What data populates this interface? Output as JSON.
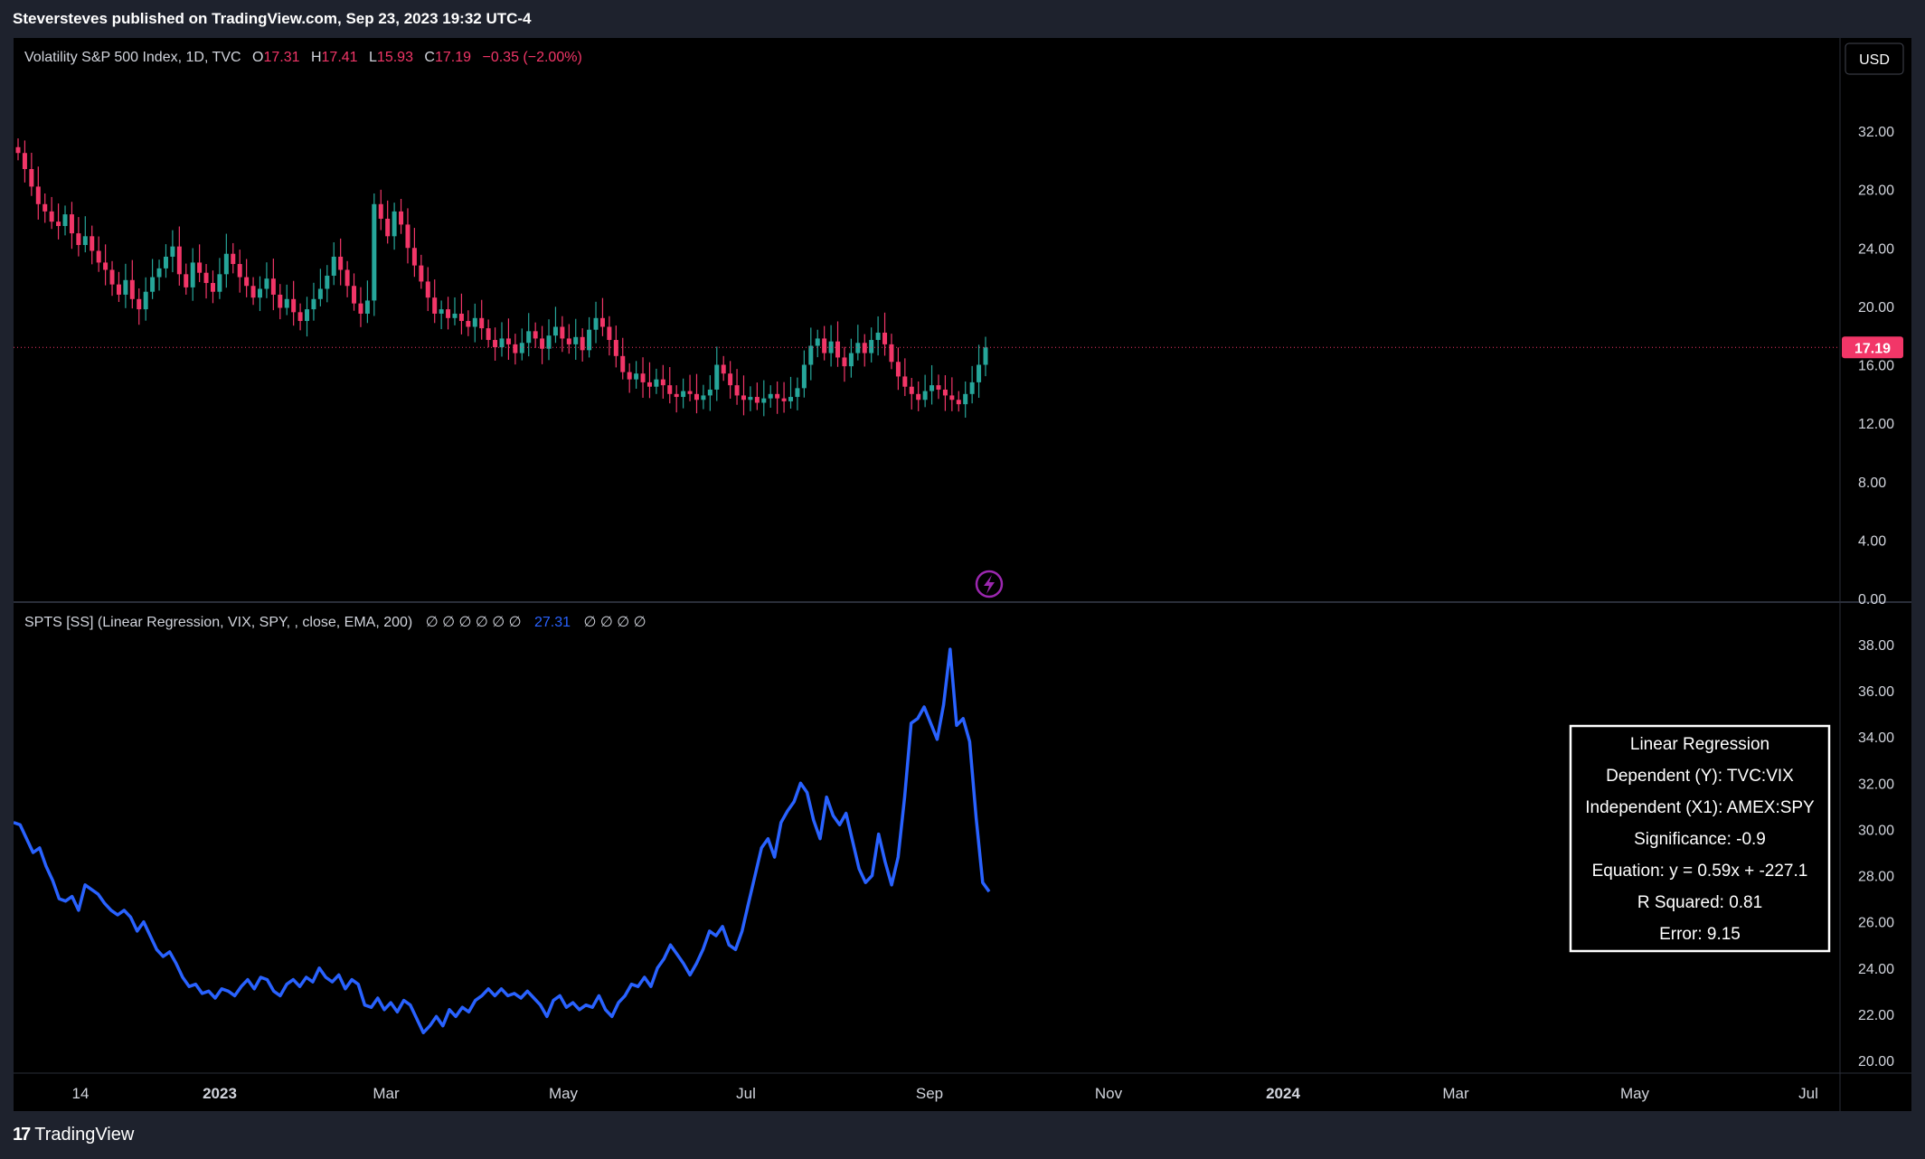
{
  "header": {
    "publisher": "Steversteves published on TradingView.com, Sep 23, 2023 19:32 UTC-4"
  },
  "footer": {
    "brand": "TradingView",
    "logo_icon": "tradingview-logo-icon"
  },
  "currency_button": "USD",
  "colors": {
    "up": "#26a69a",
    "down": "#f23668",
    "line": "#2962ff",
    "background": "#000000",
    "text": "#d1d4dc",
    "price_tag": "#f23668"
  },
  "time_axis": [
    "14",
    "2023",
    "Mar",
    "May",
    "Jul",
    "Sep",
    "Nov",
    "2024",
    "Mar",
    "May",
    "Jul"
  ],
  "chart_data": [
    {
      "type": "candlestick",
      "legend": {
        "symbol": "Volatility S&P 500 Index, 1D, TVC",
        "o_label": "O",
        "o": "17.31",
        "h_label": "H",
        "h": "17.41",
        "l_label": "L",
        "l": "15.93",
        "c_label": "C",
        "c": "17.19",
        "change": "−0.35 (−2.00%)"
      },
      "yticks": [
        "32.00",
        "28.00",
        "24.00",
        "20.00",
        "16.00",
        "12.00",
        "8.00",
        "4.00",
        "0.00"
      ],
      "ylim": [
        0,
        34
      ],
      "last_price": 17.19,
      "last_price_label": "17.19",
      "series_close": [
        30.5,
        29.4,
        28.2,
        27.0,
        26.5,
        25.8,
        25.5,
        26.3,
        25.0,
        24.2,
        24.8,
        23.8,
        23.0,
        22.5,
        21.5,
        20.8,
        21.8,
        20.5,
        19.8,
        21.0,
        22.0,
        22.6,
        23.4,
        24.1,
        22.2,
        21.3,
        23.0,
        22.3,
        21.6,
        21.0,
        22.2,
        23.6,
        22.9,
        22.0,
        21.4,
        20.6,
        21.2,
        21.9,
        20.8,
        19.9,
        20.5,
        19.6,
        19.0,
        19.8,
        20.5,
        21.2,
        22.1,
        23.4,
        22.5,
        21.4,
        20.2,
        19.5,
        20.4,
        27.0,
        26.0,
        24.8,
        26.5,
        25.6,
        24.0,
        22.8,
        21.7,
        20.6,
        19.5,
        19.8,
        19.2,
        19.5,
        19.0,
        18.6,
        19.2,
        18.5,
        17.7,
        17.2,
        17.8,
        17.4,
        16.8,
        17.5,
        18.3,
        17.8,
        17.1,
        18.0,
        18.6,
        17.8,
        17.4,
        17.9,
        17.0,
        18.4,
        19.2,
        18.6,
        17.7,
        16.6,
        15.5,
        15.0,
        15.4,
        14.8,
        14.5,
        15.0,
        14.6,
        14.0,
        13.8,
        14.2,
        14.0,
        13.6,
        13.9,
        14.3,
        16.0,
        15.4,
        14.6,
        13.9,
        13.6,
        13.8,
        13.4,
        13.7,
        14.0,
        13.7,
        13.5,
        13.8,
        14.4,
        16.0,
        17.3,
        17.8,
        16.8,
        17.6,
        16.5,
        15.9,
        16.8,
        17.5,
        16.8,
        17.7,
        18.2,
        17.4,
        16.2,
        15.2,
        14.5,
        14.0,
        13.6,
        14.2,
        14.6,
        14.3,
        13.9,
        13.6,
        13.3,
        14.0,
        14.8,
        16.0,
        17.19
      ],
      "note": "Approximate daily closes Nov 2022 – Sep 22 2023"
    },
    {
      "type": "line",
      "legend": {
        "text": "SPTS [SS] (Linear Regression, VIX, SPY, , close, EMA, 200)",
        "values_before": "∅  ∅  ∅  ∅  ∅  ∅",
        "highlight": "27.31",
        "values_after": "∅  ∅  ∅  ∅"
      },
      "yticks": [
        "38.00",
        "36.00",
        "34.00",
        "32.00",
        "30.00",
        "28.00",
        "26.00",
        "24.00",
        "22.00",
        "20.00"
      ],
      "ylim": [
        19.5,
        39.0
      ],
      "values": [
        30.3,
        30.2,
        29.6,
        29.0,
        29.2,
        28.4,
        27.8,
        27.0,
        26.9,
        27.1,
        26.5,
        27.6,
        27.4,
        27.2,
        26.8,
        26.5,
        26.3,
        26.5,
        26.2,
        25.6,
        26.0,
        25.4,
        24.8,
        24.5,
        24.7,
        24.2,
        23.6,
        23.2,
        23.3,
        22.9,
        23.0,
        22.7,
        23.1,
        23.0,
        22.8,
        23.2,
        23.5,
        23.1,
        23.6,
        23.5,
        23.0,
        22.8,
        23.3,
        23.5,
        23.2,
        23.6,
        23.4,
        24.0,
        23.6,
        23.4,
        23.7,
        23.1,
        23.5,
        23.3,
        22.4,
        22.3,
        22.7,
        22.2,
        22.5,
        22.1,
        22.6,
        22.4,
        21.8,
        21.2,
        21.5,
        21.9,
        21.5,
        22.2,
        21.9,
        22.3,
        22.1,
        22.6,
        22.8,
        23.1,
        22.8,
        23.1,
        22.8,
        22.9,
        22.7,
        23.0,
        22.7,
        22.4,
        21.9,
        22.6,
        22.8,
        22.3,
        22.5,
        22.2,
        22.4,
        22.3,
        22.8,
        22.2,
        21.9,
        22.5,
        22.8,
        23.3,
        23.2,
        23.6,
        23.2,
        24.0,
        24.4,
        25.0,
        24.6,
        24.2,
        23.7,
        24.2,
        24.8,
        25.6,
        25.4,
        25.8,
        25.0,
        24.8,
        25.6,
        26.8,
        28.0,
        29.2,
        29.6,
        28.8,
        30.3,
        30.8,
        31.2,
        32.0,
        31.6,
        30.4,
        29.6,
        31.4,
        30.6,
        30.2,
        30.7,
        29.5,
        28.3,
        27.7,
        28.0,
        29.8,
        28.6,
        27.6,
        28.8,
        31.4,
        34.6,
        34.8,
        35.3,
        34.6,
        33.9,
        35.4,
        37.8,
        34.5,
        34.8,
        33.8,
        30.5,
        27.7,
        27.31
      ],
      "note": "Approximate values read from plot"
    }
  ],
  "regression_table": {
    "title": "Linear Regression",
    "dependent": "Dependent (Y): TVC:VIX",
    "independent": "Independent (X1): AMEX:SPY",
    "significance": "Significance:  -0.9",
    "equation": "Equation: y = 0.59x + -227.1",
    "r_squared": "R Squared:  0.81",
    "error": "Error:  9.15"
  },
  "alert_icon": "lightning-bolt-icon"
}
